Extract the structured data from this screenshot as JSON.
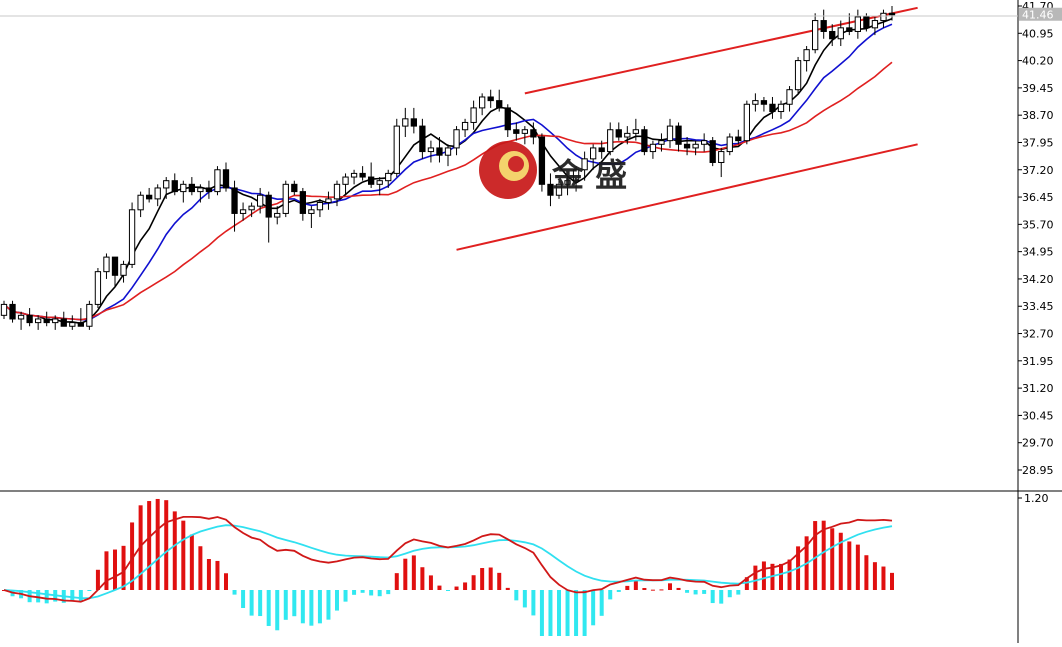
{
  "chart_data": [
    {
      "type": "candlestick",
      "pane": "price",
      "ylim": [
        28.4,
        41.7
      ],
      "y_ticks": [
        "41.70",
        "40.95",
        "40.20",
        "39.45",
        "38.70",
        "37.95",
        "37.20",
        "36.45",
        "35.70",
        "34.95",
        "34.20",
        "33.45",
        "32.70",
        "31.95",
        "31.20",
        "30.45",
        "29.70",
        "28.95"
      ],
      "current_price": "41.46",
      "candles": [
        [
          33.2,
          33.6,
          33.1,
          33.5
        ],
        [
          33.5,
          33.6,
          33.0,
          33.1
        ],
        [
          33.1,
          33.3,
          32.8,
          33.2
        ],
        [
          33.2,
          33.4,
          32.9,
          33.0
        ],
        [
          33.0,
          33.2,
          32.8,
          33.1
        ],
        [
          33.1,
          33.3,
          32.9,
          33.0
        ],
        [
          33.0,
          33.2,
          32.8,
          33.1
        ],
        [
          33.1,
          33.3,
          32.9,
          32.9
        ],
        [
          32.9,
          33.2,
          32.8,
          33.0
        ],
        [
          33.0,
          33.4,
          32.9,
          32.9
        ],
        [
          32.9,
          33.6,
          32.8,
          33.5
        ],
        [
          33.5,
          34.5,
          33.4,
          34.4
        ],
        [
          34.4,
          34.9,
          34.2,
          34.8
        ],
        [
          34.8,
          34.8,
          34.0,
          34.3
        ],
        [
          34.3,
          34.7,
          34.1,
          34.6
        ],
        [
          34.6,
          36.3,
          34.5,
          36.1
        ],
        [
          36.1,
          36.6,
          35.9,
          36.5
        ],
        [
          36.5,
          36.7,
          36.3,
          36.4
        ],
        [
          36.4,
          36.8,
          36.2,
          36.7
        ],
        [
          36.7,
          37.0,
          36.4,
          36.9
        ],
        [
          36.9,
          37.1,
          36.5,
          36.6
        ],
        [
          36.6,
          36.9,
          36.3,
          36.8
        ],
        [
          36.8,
          37.0,
          36.5,
          36.6
        ],
        [
          36.6,
          36.8,
          36.3,
          36.7
        ],
        [
          36.7,
          36.9,
          36.4,
          36.6
        ],
        [
          36.6,
          37.3,
          36.5,
          37.2
        ],
        [
          37.2,
          37.4,
          36.6,
          36.7
        ],
        [
          36.7,
          36.9,
          35.5,
          36.0
        ],
        [
          36.0,
          36.3,
          35.8,
          36.1
        ],
        [
          36.1,
          36.3,
          35.9,
          36.2
        ],
        [
          36.2,
          36.7,
          36.0,
          36.5
        ],
        [
          36.5,
          36.6,
          35.2,
          35.9
        ],
        [
          35.9,
          36.2,
          35.7,
          36.0
        ],
        [
          36.0,
          36.9,
          35.9,
          36.8
        ],
        [
          36.8,
          36.9,
          36.5,
          36.6
        ],
        [
          36.6,
          36.7,
          35.8,
          36.0
        ],
        [
          36.0,
          36.2,
          35.6,
          36.1
        ],
        [
          36.1,
          36.4,
          35.9,
          36.3
        ],
        [
          36.3,
          36.6,
          36.1,
          36.4
        ],
        [
          36.4,
          36.9,
          36.2,
          36.8
        ],
        [
          36.8,
          37.1,
          36.5,
          37.0
        ],
        [
          37.0,
          37.2,
          36.8,
          37.1
        ],
        [
          37.1,
          37.3,
          36.9,
          37.0
        ],
        [
          37.0,
          37.4,
          36.7,
          36.8
        ],
        [
          36.8,
          37.0,
          36.5,
          36.9
        ],
        [
          36.9,
          37.2,
          36.7,
          37.1
        ],
        [
          37.1,
          38.6,
          37.0,
          38.4
        ],
        [
          38.4,
          38.9,
          38.1,
          38.6
        ],
        [
          38.6,
          38.9,
          38.2,
          38.4
        ],
        [
          38.4,
          38.6,
          37.5,
          37.7
        ],
        [
          37.7,
          38.0,
          37.4,
          37.8
        ],
        [
          37.8,
          38.1,
          37.4,
          37.6
        ],
        [
          37.6,
          37.9,
          37.3,
          37.8
        ],
        [
          37.8,
          38.4,
          37.6,
          38.3
        ],
        [
          38.3,
          38.6,
          38.1,
          38.5
        ],
        [
          38.5,
          39.1,
          38.3,
          38.9
        ],
        [
          38.9,
          39.3,
          38.7,
          39.2
        ],
        [
          39.2,
          39.4,
          38.9,
          39.1
        ],
        [
          39.1,
          39.4,
          38.8,
          38.9
        ],
        [
          38.9,
          39.0,
          38.1,
          38.3
        ],
        [
          38.3,
          38.5,
          38.0,
          38.2
        ],
        [
          38.2,
          38.4,
          37.9,
          38.3
        ],
        [
          38.3,
          38.5,
          37.9,
          38.1
        ],
        [
          38.1,
          38.2,
          36.6,
          36.8
        ],
        [
          36.8,
          37.1,
          36.2,
          36.5
        ],
        [
          36.5,
          36.9,
          36.4,
          36.8
        ],
        [
          36.8,
          37.0,
          36.5,
          36.9
        ],
        [
          36.9,
          37.3,
          36.6,
          37.2
        ],
        [
          37.2,
          37.7,
          36.9,
          37.5
        ],
        [
          37.5,
          37.9,
          37.2,
          37.8
        ],
        [
          37.8,
          38.0,
          37.5,
          37.7
        ],
        [
          37.7,
          38.5,
          37.6,
          38.3
        ],
        [
          38.3,
          38.5,
          38.0,
          38.1
        ],
        [
          38.1,
          38.4,
          37.9,
          38.2
        ],
        [
          38.2,
          38.6,
          38.0,
          38.3
        ],
        [
          38.3,
          38.4,
          37.6,
          37.7
        ],
        [
          37.7,
          38.0,
          37.5,
          37.9
        ],
        [
          37.9,
          38.2,
          37.7,
          38.0
        ],
        [
          38.0,
          38.6,
          37.8,
          38.4
        ],
        [
          38.4,
          38.5,
          37.7,
          37.9
        ],
        [
          37.9,
          38.1,
          37.6,
          37.8
        ],
        [
          37.8,
          38.0,
          37.6,
          37.9
        ],
        [
          37.9,
          38.2,
          37.7,
          38.0
        ],
        [
          38.0,
          38.1,
          37.3,
          37.4
        ],
        [
          37.4,
          37.8,
          37.0,
          37.7
        ],
        [
          37.7,
          38.2,
          37.6,
          38.1
        ],
        [
          38.1,
          38.3,
          37.9,
          38.0
        ],
        [
          38.0,
          39.1,
          37.9,
          39.0
        ],
        [
          39.0,
          39.3,
          38.8,
          39.1
        ],
        [
          39.1,
          39.2,
          38.8,
          39.0
        ],
        [
          39.0,
          39.2,
          38.6,
          38.8
        ],
        [
          38.8,
          39.1,
          38.6,
          39.0
        ],
        [
          39.0,
          39.5,
          38.8,
          39.4
        ],
        [
          39.4,
          40.3,
          39.3,
          40.2
        ],
        [
          40.2,
          40.6,
          39.9,
          40.5
        ],
        [
          40.5,
          41.5,
          40.4,
          41.3
        ],
        [
          41.3,
          41.6,
          40.8,
          41.0
        ],
        [
          41.0,
          41.2,
          40.6,
          40.8
        ],
        [
          40.8,
          41.3,
          40.6,
          41.1
        ],
        [
          41.1,
          41.5,
          40.9,
          41.0
        ],
        [
          41.0,
          41.6,
          40.8,
          41.4
        ],
        [
          41.4,
          41.5,
          41.0,
          41.1
        ],
        [
          41.1,
          41.4,
          40.9,
          41.3
        ],
        [
          41.3,
          41.6,
          41.1,
          41.5
        ],
        [
          41.5,
          41.7,
          41.3,
          41.46
        ]
      ],
      "moving_averages": [
        {
          "period": 5,
          "color": "#000000"
        },
        {
          "period": 10,
          "color": "#1010d0"
        },
        {
          "period": 20,
          "color": "#e02020"
        }
      ],
      "trend_lines": [
        {
          "from": [
            61,
            39.3
          ],
          "to": [
            107,
            41.65
          ],
          "color": "#e02020"
        },
        {
          "from": [
            53,
            35.0
          ],
          "to": [
            107,
            37.9
          ],
          "color": "#e02020"
        }
      ]
    },
    {
      "type": "bar",
      "pane": "macd",
      "y_ticks": [
        "1.20"
      ],
      "ylim": [
        -0.6,
        1.2
      ],
      "hist_colors": {
        "positive": "#e01010",
        "negative": "#30e8f0"
      },
      "signal_colors": {
        "macd": "#d01818",
        "signal": "#30e0f0"
      }
    }
  ],
  "logo": {
    "text": "金  盛",
    "primary_color": "#c81818",
    "accent_color": "#d8a820"
  }
}
